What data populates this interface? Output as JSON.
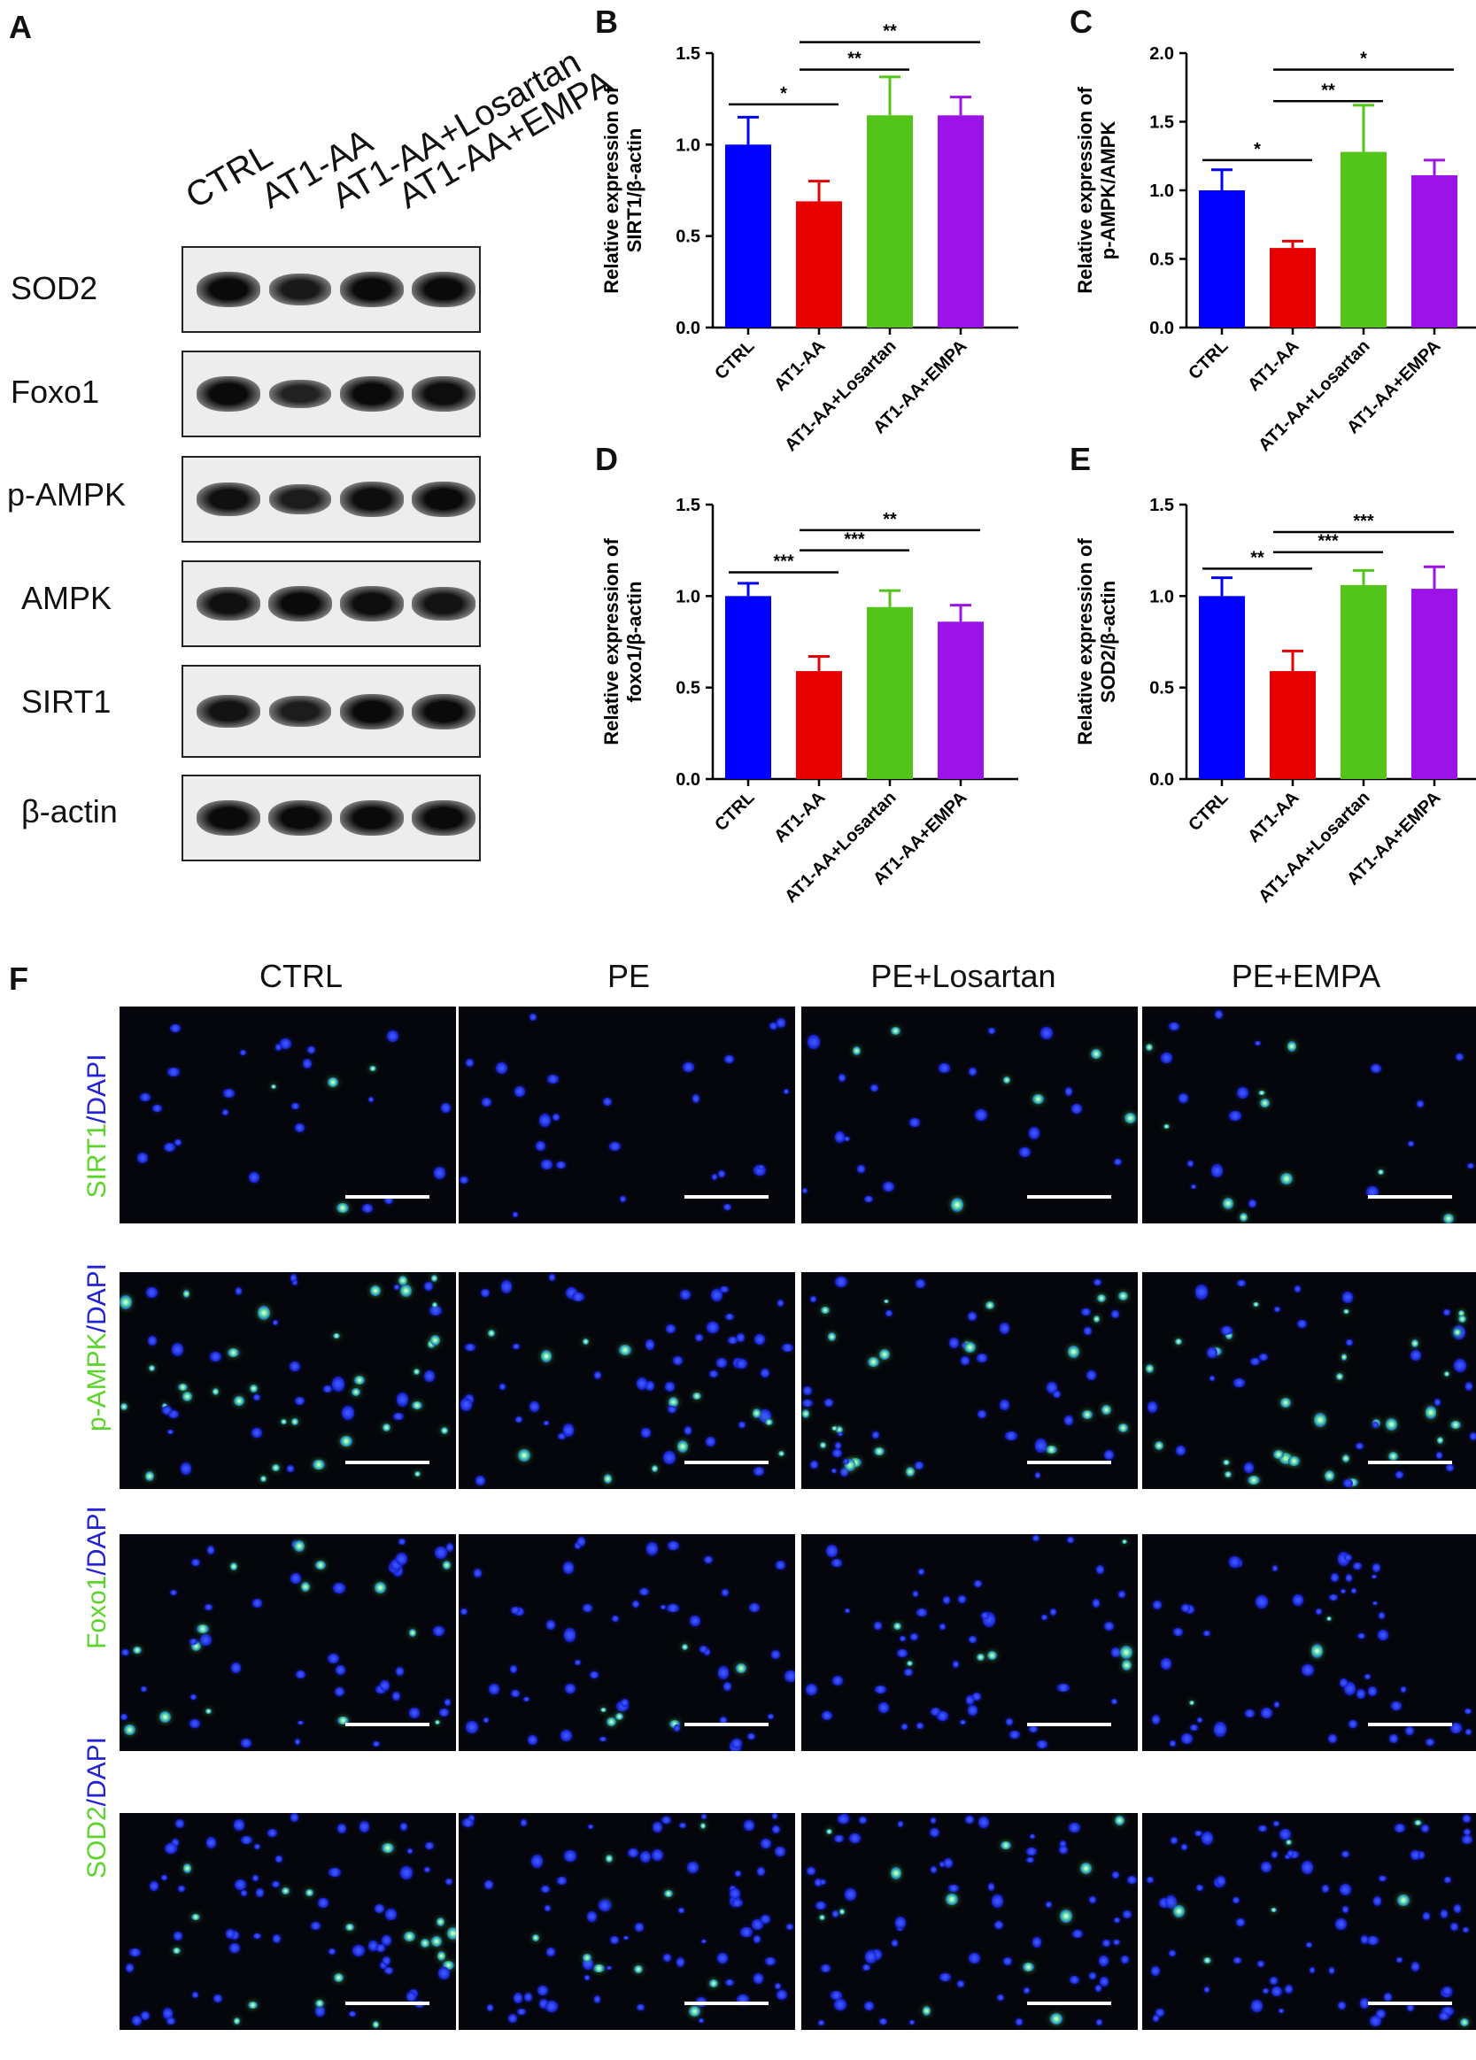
{
  "panels": {
    "a": "A",
    "b": "B",
    "c": "C",
    "d": "D",
    "e": "E",
    "f": "F"
  },
  "western_blot": {
    "lanes": [
      "CTRL",
      "AT1-AA",
      "AT1-AA+Losartan",
      "AT1-AA+EMPA"
    ],
    "proteins": [
      "SOD2",
      "Foxo1",
      "p-AMPK",
      "AMPK",
      "SIRT1",
      "β-actin"
    ],
    "intensities": [
      [
        1.0,
        0.75,
        1.0,
        1.0
      ],
      [
        1.0,
        0.6,
        1.0,
        0.95
      ],
      [
        0.9,
        0.7,
        0.95,
        1.0
      ],
      [
        0.9,
        1.0,
        0.95,
        0.85
      ],
      [
        0.85,
        0.7,
        1.0,
        1.0
      ],
      [
        1.0,
        1.0,
        1.0,
        1.0
      ]
    ]
  },
  "chart_data": [
    {
      "type": "bar",
      "panel": "B",
      "categories": [
        "CTRL",
        "AT1-AA",
        "AT1-AA+Losartan",
        "AT1-AA+EMPA"
      ],
      "values": [
        1.0,
        0.69,
        1.16,
        1.16
      ],
      "errors": [
        0.15,
        0.11,
        0.21,
        0.1
      ],
      "ylabel": [
        "Relative expression of",
        "SIRT1/β-actin"
      ],
      "ylim": [
        0,
        1.5
      ],
      "yticks": [
        "0.0",
        "0.5",
        "1.0",
        "1.5"
      ],
      "colors": [
        "#0000ff",
        "#e60000",
        "#52c41a",
        "#9c13e8"
      ],
      "significance": [
        {
          "from": 0,
          "to": 1,
          "label": "*",
          "y": 1.22
        },
        {
          "from": 1,
          "to": 2,
          "label": "**",
          "y": 1.41
        },
        {
          "from": 1,
          "to": 3,
          "label": "**",
          "y": 1.56
        }
      ]
    },
    {
      "type": "bar",
      "panel": "C",
      "categories": [
        "CTRL",
        "AT1-AA",
        "AT1-AA+Losartan",
        "AT1-AA+EMPA"
      ],
      "values": [
        1.0,
        0.58,
        1.28,
        1.11
      ],
      "errors": [
        0.15,
        0.05,
        0.34,
        0.11
      ],
      "ylabel": [
        "Relative expression of",
        "p-AMPK/AMPK"
      ],
      "ylim": [
        0,
        2.0
      ],
      "yticks": [
        "0.0",
        "0.5",
        "1.0",
        "1.5",
        "2.0"
      ],
      "colors": [
        "#0000ff",
        "#e60000",
        "#52c41a",
        "#9c13e8"
      ],
      "significance": [
        {
          "from": 0,
          "to": 1,
          "label": "*",
          "y": 1.22
        },
        {
          "from": 1,
          "to": 2,
          "label": "**",
          "y": 1.65
        },
        {
          "from": 1,
          "to": 3,
          "label": "*",
          "y": 1.88
        }
      ]
    },
    {
      "type": "bar",
      "panel": "D",
      "categories": [
        "CTRL",
        "AT1-AA",
        "AT1-AA+Losartan",
        "AT1-AA+EMPA"
      ],
      "values": [
        1.0,
        0.59,
        0.94,
        0.86
      ],
      "errors": [
        0.07,
        0.08,
        0.09,
        0.09
      ],
      "ylabel": [
        "Relative expression of",
        "foxo1/β-actin"
      ],
      "ylim": [
        0,
        1.5
      ],
      "yticks": [
        "0.0",
        "0.5",
        "1.0",
        "1.5"
      ],
      "colors": [
        "#0000ff",
        "#e60000",
        "#52c41a",
        "#9c13e8"
      ],
      "significance": [
        {
          "from": 0,
          "to": 1,
          "label": "***",
          "y": 1.13
        },
        {
          "from": 1,
          "to": 2,
          "label": "***",
          "y": 1.25
        },
        {
          "from": 1,
          "to": 3,
          "label": "**",
          "y": 1.36
        }
      ]
    },
    {
      "type": "bar",
      "panel": "E",
      "categories": [
        "CTRL",
        "AT1-AA",
        "AT1-AA+Losartan",
        "AT1-AA+EMPA"
      ],
      "values": [
        1.0,
        0.59,
        1.06,
        1.04
      ],
      "errors": [
        0.1,
        0.11,
        0.08,
        0.12
      ],
      "ylabel": [
        "Relative expression of",
        "SOD2/β-actin"
      ],
      "ylim": [
        0,
        1.5
      ],
      "yticks": [
        "0.0",
        "0.5",
        "1.0",
        "1.5"
      ],
      "colors": [
        "#0000ff",
        "#e60000",
        "#52c41a",
        "#9c13e8"
      ],
      "significance": [
        {
          "from": 0,
          "to": 1,
          "label": "**",
          "y": 1.15
        },
        {
          "from": 1,
          "to": 2,
          "label": "***",
          "y": 1.24
        },
        {
          "from": 1,
          "to": 3,
          "label": "***",
          "y": 1.35
        }
      ]
    }
  ],
  "immunofluorescence": {
    "columns": [
      "CTRL",
      "PE",
      "PE+Losartan",
      "PE+EMPA"
    ],
    "rows": [
      {
        "marker": "SIRT1",
        "sep": "/",
        "counter": "DAPI"
      },
      {
        "marker": "p-AMPK",
        "sep": "/",
        "counter": "DAPI"
      },
      {
        "marker": "Foxo1",
        "sep": "/",
        "counter": "DAPI"
      },
      {
        "marker": "SOD2",
        "sep": "/",
        "counter": "DAPI"
      }
    ],
    "green_intensity": [
      [
        0.8,
        0.1,
        0.6,
        0.6
      ],
      [
        0.9,
        0.3,
        0.8,
        0.9
      ],
      [
        0.5,
        0.15,
        0.2,
        0.2
      ],
      [
        0.35,
        0.15,
        0.3,
        0.3
      ]
    ]
  }
}
